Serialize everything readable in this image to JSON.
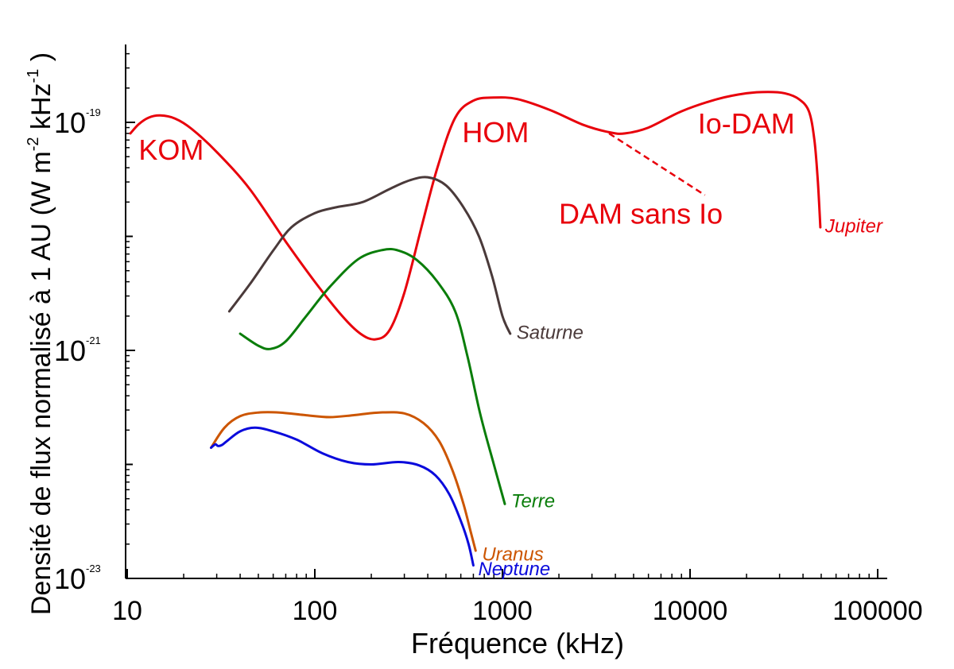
{
  "chart_data": {
    "type": "line",
    "xlabel": "Fréquence (kHz)",
    "ylabel": "Densité de flux normalisé à 1 AU (W m-2 kHz-1 )",
    "x_scale": "log",
    "y_scale": "log",
    "xlim": [
      10,
      120000
    ],
    "ylim": [
      1e-23,
      5e-19
    ],
    "x_ticks": [
      {
        "value": 10,
        "label": "10"
      },
      {
        "value": 100,
        "label": "100"
      },
      {
        "value": 1000,
        "label": "1000"
      },
      {
        "value": 10000,
        "label": "10000"
      },
      {
        "value": 100000,
        "label": "100000"
      }
    ],
    "y_ticks": [
      {
        "value": 1e-19,
        "base": "10",
        "exp": "-19"
      },
      {
        "value": 1e-21,
        "base": "10",
        "exp": "-21"
      },
      {
        "value": 1e-23,
        "base": "10",
        "exp": "-23"
      }
    ],
    "series": [
      {
        "name": "Jupiter",
        "color": "#e8000b",
        "points": [
          [
            10.4,
            8e-20
          ],
          [
            11.5,
            9.6e-20
          ],
          [
            13,
            1.1e-19
          ],
          [
            15,
            1.15e-19
          ],
          [
            18,
            1.08e-19
          ],
          [
            22,
            8.8e-20
          ],
          [
            30,
            5.5e-20
          ],
          [
            45,
            2.6e-20
          ],
          [
            70,
            9e-21
          ],
          [
            100,
            4e-21
          ],
          [
            140,
            2e-21
          ],
          [
            175,
            1.4e-21
          ],
          [
            210,
            1.25e-21
          ],
          [
            250,
            1.5e-21
          ],
          [
            300,
            3.2e-21
          ],
          [
            370,
            1.2e-20
          ],
          [
            450,
            4e-20
          ],
          [
            560,
            1.1e-19
          ],
          [
            700,
            1.55e-19
          ],
          [
            900,
            1.65e-19
          ],
          [
            1200,
            1.6e-19
          ],
          [
            1800,
            1.28e-19
          ],
          [
            2700,
            9.5e-20
          ],
          [
            3700,
            8.2e-20
          ],
          [
            4500,
            8e-20
          ],
          [
            6000,
            9e-20
          ],
          [
            9000,
            1.25e-19
          ],
          [
            14000,
            1.6e-19
          ],
          [
            20000,
            1.8e-19
          ],
          [
            26000,
            1.85e-19
          ],
          [
            32000,
            1.8e-19
          ],
          [
            38000,
            1.6e-19
          ],
          [
            43000,
            1.25e-19
          ],
          [
            46000,
            7e-20
          ],
          [
            48000,
            3e-20
          ],
          [
            49500,
            1.2e-20
          ]
        ],
        "label": "Jupiter"
      },
      {
        "name": "Jupiter DAM sans Io",
        "color": "#e8000b",
        "dashed": true,
        "points": [
          [
            3700,
            8e-20
          ],
          [
            12000,
            2.3e-20
          ]
        ]
      },
      {
        "name": "Saturne",
        "color": "#4a3a3a",
        "points": [
          [
            35,
            2.2e-21
          ],
          [
            45,
            3.8e-21
          ],
          [
            60,
            7.5e-21
          ],
          [
            75,
            1.2e-20
          ],
          [
            100,
            1.6e-20
          ],
          [
            130,
            1.8e-20
          ],
          [
            180,
            2e-20
          ],
          [
            250,
            2.6e-20
          ],
          [
            320,
            3.1e-20
          ],
          [
            400,
            3.3e-20
          ],
          [
            500,
            2.8e-20
          ],
          [
            620,
            1.8e-20
          ],
          [
            750,
            1e-20
          ],
          [
            880,
            4.5e-21
          ],
          [
            1000,
            2e-21
          ],
          [
            1100,
            1.4e-21
          ]
        ],
        "label": "Saturne"
      },
      {
        "name": "Terre",
        "color": "#0a7d0a",
        "points": [
          [
            40,
            1.4e-21
          ],
          [
            50,
            1.1e-21
          ],
          [
            58,
            1.03e-21
          ],
          [
            70,
            1.2e-21
          ],
          [
            90,
            2e-21
          ],
          [
            120,
            3.6e-21
          ],
          [
            170,
            6.3e-21
          ],
          [
            230,
            7.6e-21
          ],
          [
            280,
            7.5e-21
          ],
          [
            350,
            6.2e-21
          ],
          [
            450,
            4e-21
          ],
          [
            560,
            2.2e-21
          ],
          [
            650,
            9e-22
          ],
          [
            760,
            2.8e-22
          ],
          [
            900,
            1e-22
          ],
          [
            1030,
            4.5e-23
          ]
        ],
        "label": "Terre"
      },
      {
        "name": "Uranus",
        "color": "#cc5500",
        "points": [
          [
            28,
            1.4e-22
          ],
          [
            33,
            2.1e-22
          ],
          [
            40,
            2.65e-22
          ],
          [
            50,
            2.85e-22
          ],
          [
            65,
            2.85e-22
          ],
          [
            90,
            2.7e-22
          ],
          [
            120,
            2.6e-22
          ],
          [
            160,
            2.7e-22
          ],
          [
            220,
            2.85e-22
          ],
          [
            300,
            2.8e-22
          ],
          [
            380,
            2.3e-22
          ],
          [
            460,
            1.6e-22
          ],
          [
            540,
            9e-23
          ],
          [
            620,
            4.5e-23
          ],
          [
            680,
            2.5e-23
          ],
          [
            720,
            1.75e-23
          ]
        ],
        "label": "Uranus"
      },
      {
        "name": "Neptune",
        "color": "#0a0adc",
        "points": [
          [
            28,
            1.4e-22
          ],
          [
            29.5,
            1.5e-22
          ],
          [
            30.5,
            1.45e-22
          ],
          [
            32,
            1.48e-22
          ],
          [
            34,
            1.6e-22
          ],
          [
            40,
            1.95e-22
          ],
          [
            48,
            2.1e-22
          ],
          [
            60,
            1.95e-22
          ],
          [
            80,
            1.65e-22
          ],
          [
            110,
            1.25e-22
          ],
          [
            150,
            1.05e-22
          ],
          [
            200,
            1e-22
          ],
          [
            280,
            1.05e-22
          ],
          [
            360,
            9.8e-23
          ],
          [
            440,
            8e-23
          ],
          [
            520,
            5.5e-23
          ],
          [
            600,
            3.2e-23
          ],
          [
            660,
            2e-23
          ],
          [
            700,
            1.3e-23
          ]
        ],
        "label": "Neptune"
      }
    ],
    "annotations": [
      {
        "text": "KOM",
        "x": 11.5,
        "y": 5.5e-20,
        "color": "#e8000b",
        "size": "large"
      },
      {
        "text": "HOM",
        "x": 610,
        "y": 7.8e-20,
        "color": "#e8000b",
        "size": "large"
      },
      {
        "text": "Io-DAM",
        "x": 11000,
        "y": 9.3e-20,
        "color": "#e8000b",
        "size": "large"
      },
      {
        "text": "DAM sans Io",
        "x": 2000,
        "y": 1.5e-20,
        "color": "#e8000b",
        "size": "large"
      }
    ],
    "grid": false,
    "legend": "none"
  }
}
